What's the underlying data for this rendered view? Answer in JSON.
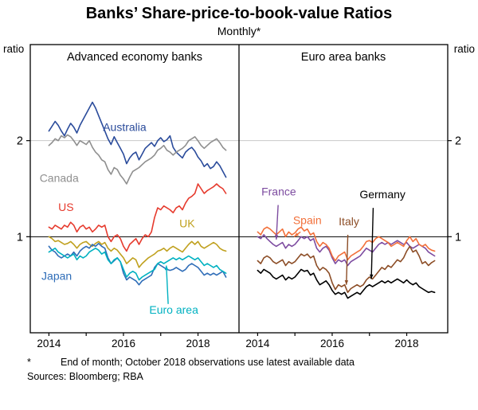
{
  "page": {
    "title": "Banks’ Share-price-to-book-value Ratios",
    "subtitle": "Monthly*",
    "footnote_marker": "*",
    "footnote_text": "End of month; October 2018 observations use latest available data",
    "sources": "Sources: Bloomberg; RBA"
  },
  "chart_data": {
    "type": "line",
    "title": "Banks’ Share-price-to-book-value Ratios",
    "subtitle": "Monthly*",
    "ylabel": "ratio",
    "ylim": [
      0,
      3
    ],
    "yticks": [
      1,
      2
    ],
    "gridlines": {
      "light": [
        2
      ],
      "dark": [
        1
      ]
    },
    "xlim": [
      2013.5,
      2019.1
    ],
    "x_start": 2014.0,
    "x_step": 0.0833333,
    "xticks": [
      2014,
      2016,
      2018
    ],
    "xtick_labels": [
      "2014",
      "2016",
      "2018"
    ],
    "year_ticks": [
      2014,
      2015,
      2016,
      2017,
      2018
    ],
    "legend_position": "inline-annotations",
    "panels": [
      {
        "title": "Advanced economy banks",
        "series": [
          {
            "name": "Australia",
            "color": "#2a4b9b",
            "values": [
              2.1,
              2.15,
              2.2,
              2.16,
              2.1,
              2.05,
              2.12,
              2.18,
              2.14,
              2.08,
              2.16,
              2.22,
              2.28,
              2.34,
              2.4,
              2.34,
              2.26,
              2.18,
              2.1,
              2.02,
              1.96,
              2.04,
              1.98,
              1.92,
              1.86,
              1.76,
              1.82,
              1.86,
              1.88,
              1.8,
              1.86,
              1.92,
              1.95,
              1.98,
              1.94,
              2.0,
              2.03,
              1.99,
              2.01,
              2.05,
              1.93,
              1.88,
              1.85,
              1.82,
              1.88,
              1.91,
              1.93,
              1.89,
              1.83,
              1.79,
              1.73,
              1.76,
              1.71,
              1.73,
              1.78,
              1.74,
              1.68,
              1.62
            ]
          },
          {
            "name": "Canada",
            "color": "#8f8f8f",
            "values": [
              1.95,
              1.98,
              2.02,
              2.0,
              2.05,
              2.03,
              2.06,
              2.04,
              2.0,
              1.95,
              2.0,
              1.98,
              1.96,
              2.0,
              1.93,
              1.88,
              1.85,
              1.8,
              1.78,
              1.7,
              1.65,
              1.72,
              1.7,
              1.64,
              1.6,
              1.55,
              1.62,
              1.68,
              1.7,
              1.72,
              1.75,
              1.78,
              1.8,
              1.82,
              1.85,
              1.9,
              1.92,
              1.95,
              1.9,
              1.88,
              1.85,
              1.88,
              1.9,
              1.92,
              1.95,
              2.0,
              2.02,
              2.04,
              2.0,
              1.95,
              1.92,
              1.95,
              1.98,
              2.0,
              2.02,
              1.98,
              1.93,
              1.9
            ]
          },
          {
            "name": "US",
            "color": "#e63b2e",
            "values": [
              1.1,
              1.08,
              1.12,
              1.1,
              1.08,
              1.12,
              1.1,
              1.15,
              1.12,
              1.05,
              1.1,
              1.12,
              1.08,
              1.1,
              1.05,
              1.08,
              1.12,
              1.1,
              1.12,
              1.0,
              0.95,
              1.0,
              1.02,
              0.98,
              0.9,
              0.85,
              0.92,
              0.95,
              0.98,
              0.92,
              0.98,
              1.02,
              1.0,
              1.05,
              1.2,
              1.3,
              1.28,
              1.32,
              1.3,
              1.28,
              1.25,
              1.3,
              1.32,
              1.28,
              1.35,
              1.4,
              1.42,
              1.45,
              1.55,
              1.5,
              1.45,
              1.48,
              1.5,
              1.52,
              1.55,
              1.52,
              1.5,
              1.45
            ]
          },
          {
            "name": "UK",
            "color": "#c0a11f",
            "values": [
              1.0,
              0.98,
              0.95,
              0.96,
              0.94,
              0.92,
              0.93,
              0.95,
              0.92,
              0.88,
              0.92,
              0.94,
              0.95,
              0.92,
              0.9,
              0.93,
              0.95,
              0.92,
              0.94,
              0.88,
              0.85,
              0.88,
              0.86,
              0.82,
              0.78,
              0.72,
              0.75,
              0.78,
              0.76,
              0.68,
              0.72,
              0.75,
              0.78,
              0.8,
              0.82,
              0.85,
              0.86,
              0.88,
              0.85,
              0.88,
              0.9,
              0.88,
              0.86,
              0.84,
              0.88,
              0.92,
              0.95,
              0.92,
              0.95,
              0.9,
              0.88,
              0.9,
              0.92,
              0.94,
              0.92,
              0.88,
              0.86,
              0.85
            ]
          },
          {
            "name": "Japan",
            "color": "#2f6db8",
            "values": [
              0.9,
              0.86,
              0.84,
              0.8,
              0.78,
              0.8,
              0.82,
              0.8,
              0.84,
              0.8,
              0.85,
              0.88,
              0.9,
              0.88,
              0.92,
              0.9,
              0.93,
              0.9,
              0.88,
              0.78,
              0.72,
              0.75,
              0.78,
              0.74,
              0.62,
              0.55,
              0.58,
              0.56,
              0.54,
              0.5,
              0.54,
              0.56,
              0.58,
              0.6,
              0.68,
              0.72,
              0.7,
              0.68,
              0.66,
              0.65,
              0.66,
              0.68,
              0.66,
              0.64,
              0.66,
              0.7,
              0.72,
              0.7,
              0.68,
              0.64,
              0.6,
              0.62,
              0.6,
              0.62,
              0.6,
              0.62,
              0.64,
              0.58
            ]
          },
          {
            "name": "Euro area",
            "color": "#00b1c1",
            "values": [
              0.84,
              0.86,
              0.88,
              0.84,
              0.82,
              0.8,
              0.78,
              0.8,
              0.82,
              0.76,
              0.8,
              0.78,
              0.8,
              0.84,
              0.86,
              0.88,
              0.86,
              0.82,
              0.84,
              0.76,
              0.72,
              0.76,
              0.78,
              0.74,
              0.66,
              0.58,
              0.62,
              0.64,
              0.62,
              0.55,
              0.58,
              0.6,
              0.62,
              0.64,
              0.66,
              0.72,
              0.74,
              0.72,
              0.74,
              0.76,
              0.78,
              0.76,
              0.78,
              0.76,
              0.78,
              0.8,
              0.78,
              0.76,
              0.78,
              0.74,
              0.7,
              0.72,
              0.7,
              0.68,
              0.7,
              0.66,
              0.64,
              0.62
            ]
          }
        ],
        "annotations": [
          {
            "text": "Australia",
            "color": "#2a4b9b",
            "x": 2015.45,
            "y": 2.1,
            "anchor": "start"
          },
          {
            "text": "Canada",
            "color": "#8f8f8f",
            "x": 2013.75,
            "y": 1.57,
            "anchor": "start"
          },
          {
            "text": "US",
            "color": "#e63b2e",
            "x": 2014.25,
            "y": 1.27,
            "anchor": "start"
          },
          {
            "text": "UK",
            "color": "#c0a11f",
            "x": 2017.5,
            "y": 1.1,
            "anchor": "start"
          },
          {
            "text": "Japan",
            "color": "#2f6db8",
            "x": 2013.8,
            "y": 0.55,
            "anchor": "start"
          },
          {
            "text": "Euro area",
            "color": "#00b1c1",
            "x": 2017.35,
            "y": 0.2,
            "anchor": "middle",
            "arrow": {
              "x1": 2017.2,
              "y1": 0.3,
              "x2": 2017.15,
              "y2": 0.7
            }
          }
        ]
      },
      {
        "title": "Euro area banks",
        "series": [
          {
            "name": "France",
            "color": "#7d4ca0",
            "values": [
              1.0,
              0.98,
              1.02,
              0.98,
              0.95,
              0.92,
              0.9,
              0.92,
              0.94,
              0.88,
              0.92,
              0.9,
              0.92,
              0.96,
              1.0,
              0.98,
              1.0,
              0.96,
              0.98,
              0.88,
              0.84,
              0.88,
              0.9,
              0.86,
              0.78,
              0.72,
              0.76,
              0.74,
              0.76,
              0.7,
              0.74,
              0.76,
              0.78,
              0.8,
              0.84,
              0.88,
              0.86,
              0.84,
              0.88,
              0.92,
              0.94,
              0.92,
              0.94,
              0.92,
              0.94,
              0.96,
              0.94,
              0.92,
              0.94,
              0.9,
              0.88,
              0.9,
              0.92,
              0.9,
              0.88,
              0.84,
              0.82,
              0.8
            ]
          },
          {
            "name": "Spain",
            "color": "#f2703a",
            "values": [
              1.05,
              1.02,
              1.08,
              1.1,
              1.08,
              1.05,
              1.02,
              1.05,
              1.08,
              1.0,
              1.05,
              1.02,
              1.04,
              1.08,
              1.1,
              1.06,
              1.08,
              1.02,
              1.04,
              0.95,
              0.9,
              0.94,
              0.92,
              0.88,
              0.8,
              0.75,
              0.8,
              0.82,
              0.84,
              0.76,
              0.8,
              0.82,
              0.84,
              0.86,
              0.9,
              0.95,
              0.96,
              0.94,
              0.98,
              1.0,
              0.98,
              0.96,
              0.94,
              0.9,
              0.92,
              0.94,
              0.92,
              0.9,
              0.96,
              1.0,
              0.95,
              0.98,
              0.92,
              0.9,
              0.92,
              0.88,
              0.86,
              0.85
            ]
          },
          {
            "name": "Italy",
            "color": "#8c4d26",
            "values": [
              0.75,
              0.72,
              0.78,
              0.8,
              0.78,
              0.74,
              0.72,
              0.74,
              0.76,
              0.7,
              0.74,
              0.72,
              0.74,
              0.78,
              0.82,
              0.8,
              0.82,
              0.78,
              0.8,
              0.7,
              0.65,
              0.68,
              0.66,
              0.62,
              0.52,
              0.45,
              0.5,
              0.48,
              0.5,
              0.42,
              0.46,
              0.48,
              0.5,
              0.48,
              0.5,
              0.55,
              0.58,
              0.56,
              0.6,
              0.64,
              0.68,
              0.66,
              0.7,
              0.68,
              0.72,
              0.76,
              0.74,
              0.78,
              0.85,
              0.9,
              0.84,
              0.86,
              0.8,
              0.72,
              0.74,
              0.7,
              0.73,
              0.75
            ]
          },
          {
            "name": "Germany",
            "color": "#000000",
            "values": [
              0.65,
              0.62,
              0.66,
              0.64,
              0.62,
              0.58,
              0.56,
              0.58,
              0.6,
              0.55,
              0.58,
              0.56,
              0.58,
              0.62,
              0.66,
              0.64,
              0.65,
              0.6,
              0.62,
              0.55,
              0.5,
              0.52,
              0.54,
              0.5,
              0.44,
              0.4,
              0.42,
              0.4,
              0.42,
              0.36,
              0.38,
              0.4,
              0.42,
              0.4,
              0.44,
              0.48,
              0.5,
              0.48,
              0.5,
              0.52,
              0.54,
              0.52,
              0.54,
              0.52,
              0.54,
              0.56,
              0.54,
              0.52,
              0.55,
              0.52,
              0.5,
              0.52,
              0.48,
              0.46,
              0.44,
              0.42,
              0.43,
              0.42
            ]
          }
        ],
        "annotations": [
          {
            "text": "France",
            "color": "#7d4ca0",
            "x": 2014.1,
            "y": 1.43,
            "anchor": "start",
            "arrow": {
              "x1": 2014.55,
              "y1": 1.33,
              "x2": 2014.5,
              "y2": 0.97
            }
          },
          {
            "text": "Spain",
            "color": "#f2703a",
            "x": 2014.95,
            "y": 1.13,
            "anchor": "start",
            "arrow": {
              "x1": 2015.15,
              "y1": 1.05,
              "x2": 2014.98,
              "y2": 1.0
            }
          },
          {
            "text": "Italy",
            "color": "#8c4d26",
            "x": 2016.45,
            "y": 1.12,
            "anchor": "middle",
            "arrow": {
              "x1": 2016.42,
              "y1": 1.02,
              "x2": 2016.38,
              "y2": 0.5
            }
          },
          {
            "text": "Germany",
            "color": "#000000",
            "x": 2017.35,
            "y": 1.4,
            "anchor": "middle",
            "arrow": {
              "x1": 2017.1,
              "y1": 1.3,
              "x2": 2017.05,
              "y2": 0.56
            }
          }
        ]
      }
    ]
  }
}
